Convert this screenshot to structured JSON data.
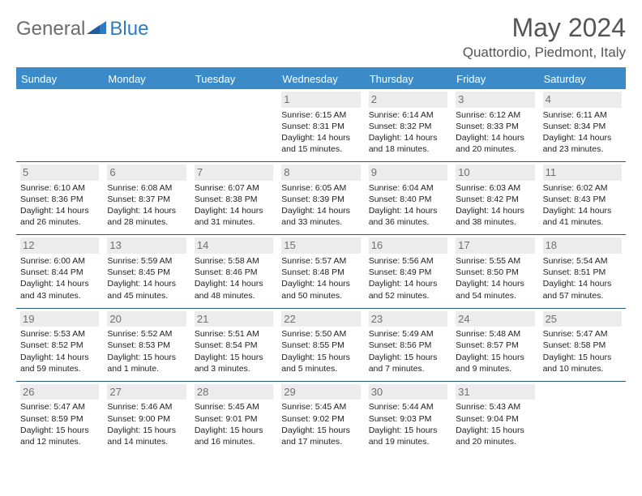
{
  "brand": {
    "general": "General",
    "blue": "Blue"
  },
  "title": "May 2024",
  "location": "Quattordio, Piedmont, Italy",
  "colors": {
    "header_bg": "#3b8bc9",
    "header_text": "#ffffff",
    "border": "#2a5a8a",
    "daynum_bg": "#ececec",
    "daynum_text": "#707070",
    "body_text": "#222222",
    "title_text": "#555555",
    "logo_gray": "#6c6c6c",
    "logo_blue": "#2f7bbf"
  },
  "dayNames": [
    "Sunday",
    "Monday",
    "Tuesday",
    "Wednesday",
    "Thursday",
    "Friday",
    "Saturday"
  ],
  "leadingBlanks": 3,
  "days": [
    {
      "n": 1,
      "sunrise": "6:15 AM",
      "sunset": "8:31 PM",
      "daylight": "14 hours and 15 minutes."
    },
    {
      "n": 2,
      "sunrise": "6:14 AM",
      "sunset": "8:32 PM",
      "daylight": "14 hours and 18 minutes."
    },
    {
      "n": 3,
      "sunrise": "6:12 AM",
      "sunset": "8:33 PM",
      "daylight": "14 hours and 20 minutes."
    },
    {
      "n": 4,
      "sunrise": "6:11 AM",
      "sunset": "8:34 PM",
      "daylight": "14 hours and 23 minutes."
    },
    {
      "n": 5,
      "sunrise": "6:10 AM",
      "sunset": "8:36 PM",
      "daylight": "14 hours and 26 minutes."
    },
    {
      "n": 6,
      "sunrise": "6:08 AM",
      "sunset": "8:37 PM",
      "daylight": "14 hours and 28 minutes."
    },
    {
      "n": 7,
      "sunrise": "6:07 AM",
      "sunset": "8:38 PM",
      "daylight": "14 hours and 31 minutes."
    },
    {
      "n": 8,
      "sunrise": "6:05 AM",
      "sunset": "8:39 PM",
      "daylight": "14 hours and 33 minutes."
    },
    {
      "n": 9,
      "sunrise": "6:04 AM",
      "sunset": "8:40 PM",
      "daylight": "14 hours and 36 minutes."
    },
    {
      "n": 10,
      "sunrise": "6:03 AM",
      "sunset": "8:42 PM",
      "daylight": "14 hours and 38 minutes."
    },
    {
      "n": 11,
      "sunrise": "6:02 AM",
      "sunset": "8:43 PM",
      "daylight": "14 hours and 41 minutes."
    },
    {
      "n": 12,
      "sunrise": "6:00 AM",
      "sunset": "8:44 PM",
      "daylight": "14 hours and 43 minutes."
    },
    {
      "n": 13,
      "sunrise": "5:59 AM",
      "sunset": "8:45 PM",
      "daylight": "14 hours and 45 minutes."
    },
    {
      "n": 14,
      "sunrise": "5:58 AM",
      "sunset": "8:46 PM",
      "daylight": "14 hours and 48 minutes."
    },
    {
      "n": 15,
      "sunrise": "5:57 AM",
      "sunset": "8:48 PM",
      "daylight": "14 hours and 50 minutes."
    },
    {
      "n": 16,
      "sunrise": "5:56 AM",
      "sunset": "8:49 PM",
      "daylight": "14 hours and 52 minutes."
    },
    {
      "n": 17,
      "sunrise": "5:55 AM",
      "sunset": "8:50 PM",
      "daylight": "14 hours and 54 minutes."
    },
    {
      "n": 18,
      "sunrise": "5:54 AM",
      "sunset": "8:51 PM",
      "daylight": "14 hours and 57 minutes."
    },
    {
      "n": 19,
      "sunrise": "5:53 AM",
      "sunset": "8:52 PM",
      "daylight": "14 hours and 59 minutes."
    },
    {
      "n": 20,
      "sunrise": "5:52 AM",
      "sunset": "8:53 PM",
      "daylight": "15 hours and 1 minute."
    },
    {
      "n": 21,
      "sunrise": "5:51 AM",
      "sunset": "8:54 PM",
      "daylight": "15 hours and 3 minutes."
    },
    {
      "n": 22,
      "sunrise": "5:50 AM",
      "sunset": "8:55 PM",
      "daylight": "15 hours and 5 minutes."
    },
    {
      "n": 23,
      "sunrise": "5:49 AM",
      "sunset": "8:56 PM",
      "daylight": "15 hours and 7 minutes."
    },
    {
      "n": 24,
      "sunrise": "5:48 AM",
      "sunset": "8:57 PM",
      "daylight": "15 hours and 9 minutes."
    },
    {
      "n": 25,
      "sunrise": "5:47 AM",
      "sunset": "8:58 PM",
      "daylight": "15 hours and 10 minutes."
    },
    {
      "n": 26,
      "sunrise": "5:47 AM",
      "sunset": "8:59 PM",
      "daylight": "15 hours and 12 minutes."
    },
    {
      "n": 27,
      "sunrise": "5:46 AM",
      "sunset": "9:00 PM",
      "daylight": "15 hours and 14 minutes."
    },
    {
      "n": 28,
      "sunrise": "5:45 AM",
      "sunset": "9:01 PM",
      "daylight": "15 hours and 16 minutes."
    },
    {
      "n": 29,
      "sunrise": "5:45 AM",
      "sunset": "9:02 PM",
      "daylight": "15 hours and 17 minutes."
    },
    {
      "n": 30,
      "sunrise": "5:44 AM",
      "sunset": "9:03 PM",
      "daylight": "15 hours and 19 minutes."
    },
    {
      "n": 31,
      "sunrise": "5:43 AM",
      "sunset": "9:04 PM",
      "daylight": "15 hours and 20 minutes."
    }
  ],
  "labels": {
    "sunrise": "Sunrise: ",
    "sunset": "Sunset: ",
    "daylight": "Daylight: "
  }
}
